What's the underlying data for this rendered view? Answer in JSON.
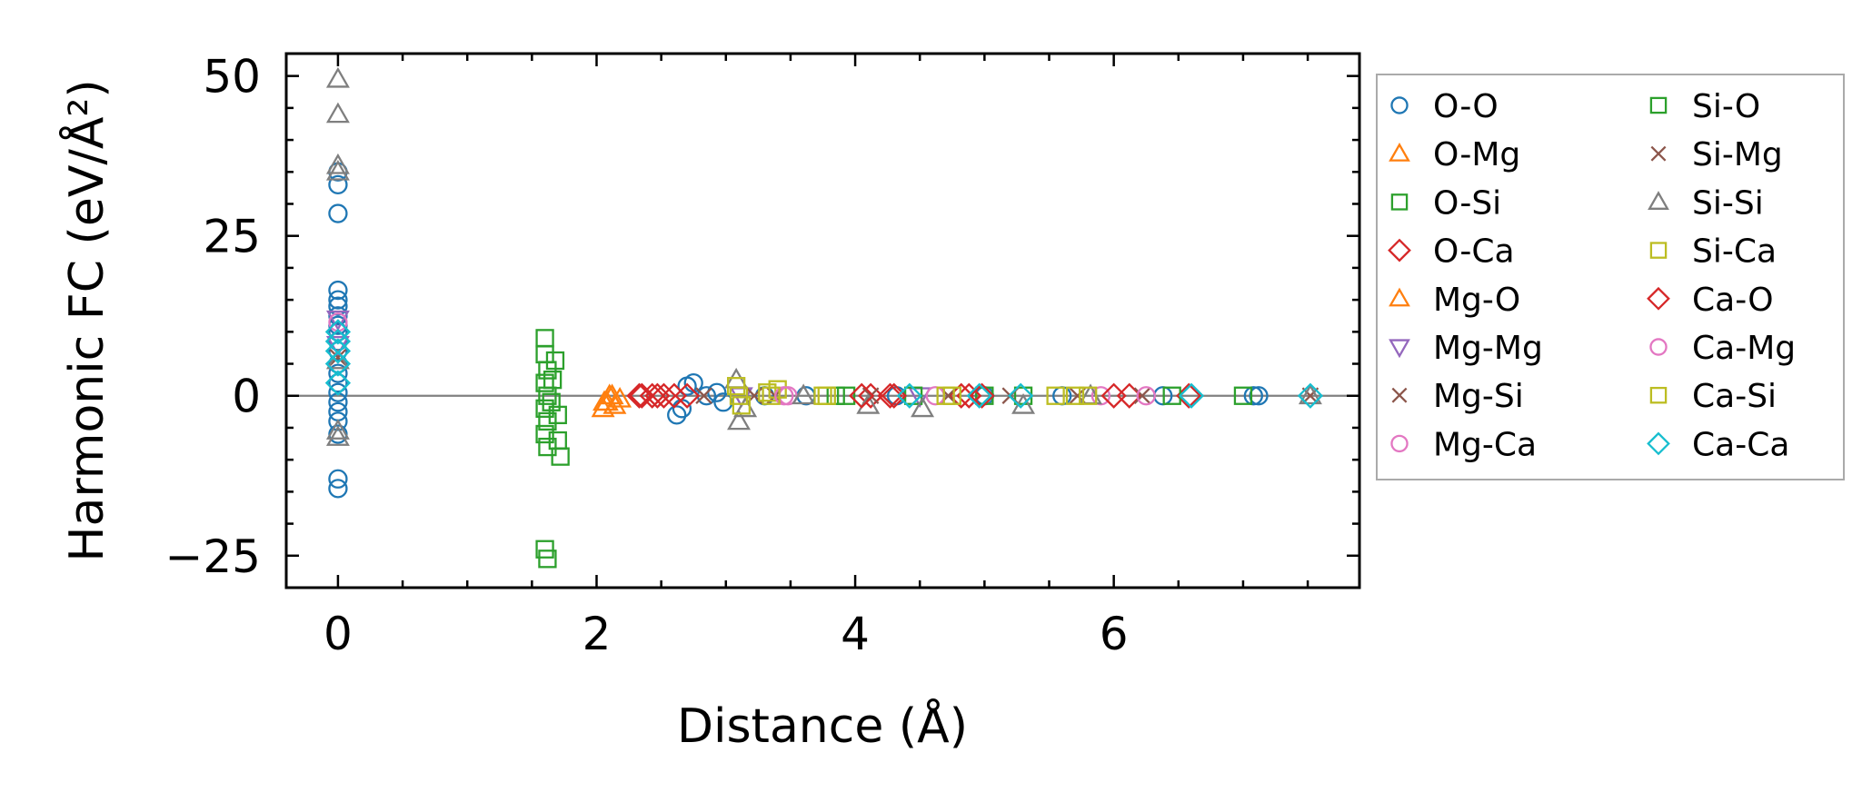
{
  "chart_data": {
    "type": "scatter",
    "title": "",
    "xlabel": "Distance (Å)",
    "ylabel": "Harmonic FC (eV/Å²)",
    "xlim": [
      -0.4,
      7.9
    ],
    "ylim": [
      -30,
      53.5
    ],
    "xticks": [
      0,
      2,
      4,
      6
    ],
    "yticks": [
      -25,
      0,
      25,
      50
    ],
    "xtick_labels": [
      "0",
      "2",
      "4",
      "6"
    ],
    "ytick_labels": [
      "−25",
      "0",
      "25",
      "50"
    ],
    "zero_line": true,
    "grid": false,
    "legend_position": "outside-right",
    "series": [
      {
        "name": "O-O",
        "marker": "circle",
        "color": "#1f77b4",
        "points": [
          [
            0,
            16.5
          ],
          [
            0,
            15
          ],
          [
            0,
            14
          ],
          [
            0,
            12.5
          ],
          [
            0,
            11
          ],
          [
            0,
            10
          ],
          [
            0,
            8.5
          ],
          [
            0,
            7
          ],
          [
            0,
            5
          ],
          [
            0,
            3.5
          ],
          [
            0,
            2
          ],
          [
            0,
            0.5
          ],
          [
            0,
            -1
          ],
          [
            0,
            -2.5
          ],
          [
            0,
            -4
          ],
          [
            0,
            -6
          ],
          [
            0,
            -13
          ],
          [
            0,
            -14.5
          ],
          [
            0,
            28.5
          ],
          [
            0,
            33
          ],
          [
            0,
            35
          ],
          [
            2.62,
            -3
          ],
          [
            2.66,
            -2
          ],
          [
            2.7,
            1.5
          ],
          [
            2.75,
            2
          ],
          [
            2.85,
            0
          ],
          [
            2.93,
            0.5
          ],
          [
            2.98,
            -1
          ],
          [
            3.3,
            0
          ],
          [
            3.62,
            0
          ],
          [
            4.32,
            0
          ],
          [
            5.0,
            0
          ],
          [
            5.6,
            0
          ],
          [
            6.38,
            0
          ],
          [
            7.08,
            0
          ],
          [
            7.12,
            0
          ]
        ]
      },
      {
        "name": "O-Mg",
        "marker": "triangle-up",
        "color": "#ff7f0e",
        "points": [
          [
            2.05,
            -2
          ],
          [
            2.08,
            -1
          ],
          [
            2.1,
            0
          ],
          [
            2.14,
            -1.5
          ],
          [
            2.18,
            -0.5
          ]
        ]
      },
      {
        "name": "O-Si",
        "marker": "square",
        "color": "#2ca02c",
        "points": [
          [
            1.6,
            9
          ],
          [
            1.6,
            6.5
          ],
          [
            1.62,
            4
          ],
          [
            1.6,
            2
          ],
          [
            1.62,
            0
          ],
          [
            1.6,
            -2
          ],
          [
            1.62,
            -4
          ],
          [
            1.6,
            -6
          ],
          [
            1.62,
            -8
          ],
          [
            1.65,
            -1
          ],
          [
            1.66,
            2.5
          ],
          [
            1.68,
            5.5
          ],
          [
            1.7,
            -3
          ],
          [
            1.7,
            -7
          ],
          [
            1.72,
            -9.5
          ],
          [
            1.6,
            -24
          ],
          [
            1.62,
            -25.5
          ],
          [
            3.93,
            0
          ],
          [
            5.0,
            0
          ],
          [
            7.0,
            0
          ]
        ]
      },
      {
        "name": "O-Ca",
        "marker": "diamond",
        "color": "#d62728",
        "points": [
          [
            2.33,
            0
          ],
          [
            2.43,
            0
          ],
          [
            2.52,
            0
          ],
          [
            2.6,
            0
          ],
          [
            2.7,
            0
          ],
          [
            4.12,
            0
          ],
          [
            4.27,
            0
          ],
          [
            4.82,
            0
          ],
          [
            4.98,
            0
          ],
          [
            6.12,
            0
          ],
          [
            6.58,
            0
          ]
        ]
      },
      {
        "name": "Mg-O",
        "marker": "triangle-up",
        "color": "#ff7f0e",
        "points": [
          [
            2.06,
            -1
          ],
          [
            2.12,
            0
          ]
        ]
      },
      {
        "name": "Mg-Mg",
        "marker": "triangle-down",
        "color": "#9467bd",
        "points": [
          [
            0,
            12
          ],
          [
            0,
            8
          ],
          [
            3.12,
            0
          ],
          [
            4.5,
            0
          ]
        ]
      },
      {
        "name": "Mg-Si",
        "marker": "x",
        "color": "#8c564b",
        "points": [
          [
            0,
            6
          ],
          [
            2.83,
            0
          ],
          [
            3.38,
            0
          ],
          [
            4.72,
            0
          ]
        ]
      },
      {
        "name": "Mg-Ca",
        "marker": "circle",
        "color": "#e377c2",
        "points": [
          [
            0,
            11.5
          ],
          [
            3.48,
            0
          ],
          [
            4.62,
            0
          ],
          [
            5.9,
            0
          ]
        ]
      },
      {
        "name": "Si-O",
        "marker": "square",
        "color": "#2ca02c",
        "points": [
          [
            3.85,
            0
          ],
          [
            4.45,
            0
          ],
          [
            5.3,
            0
          ],
          [
            6.45,
            0
          ]
        ]
      },
      {
        "name": "Si-Mg",
        "marker": "x",
        "color": "#8c564b",
        "points": [
          [
            3.22,
            0
          ],
          [
            4.12,
            0
          ],
          [
            5.2,
            0
          ],
          [
            5.72,
            0
          ],
          [
            6.22,
            0
          ],
          [
            7.52,
            0
          ]
        ]
      },
      {
        "name": "Si-Si",
        "marker": "triangle-up",
        "color": "#7f7f7f",
        "points": [
          [
            0,
            49.5
          ],
          [
            0,
            44
          ],
          [
            0,
            36
          ],
          [
            0,
            35
          ],
          [
            0,
            5.5
          ],
          [
            0,
            -5.5
          ],
          [
            0,
            -6.5
          ],
          [
            3.08,
            2.5
          ],
          [
            3.1,
            -4
          ],
          [
            3.15,
            -2
          ],
          [
            3.6,
            0
          ],
          [
            4.1,
            -1.5
          ],
          [
            4.52,
            -2
          ],
          [
            5.3,
            -1.5
          ],
          [
            5.82,
            0
          ],
          [
            7.52,
            0
          ]
        ]
      },
      {
        "name": "Si-Ca",
        "marker": "square",
        "color": "#bcbd22",
        "points": [
          [
            3.08,
            1.5
          ],
          [
            3.1,
            0
          ],
          [
            3.12,
            -1.5
          ],
          [
            3.32,
            0.5
          ],
          [
            3.4,
            1
          ],
          [
            3.78,
            0
          ],
          [
            4.7,
            0
          ],
          [
            5.7,
            0
          ]
        ]
      },
      {
        "name": "Ca-O",
        "marker": "diamond",
        "color": "#d62728",
        "points": [
          [
            2.35,
            0
          ],
          [
            2.47,
            0
          ],
          [
            4.05,
            0
          ],
          [
            4.3,
            0
          ],
          [
            4.88,
            0
          ],
          [
            6.0,
            0
          ]
        ]
      },
      {
        "name": "Ca-Mg",
        "marker": "circle",
        "color": "#e377c2",
        "points": [
          [
            3.45,
            0
          ],
          [
            6.25,
            0
          ]
        ]
      },
      {
        "name": "Ca-Si",
        "marker": "square",
        "color": "#bcbd22",
        "points": [
          [
            3.35,
            0
          ],
          [
            3.75,
            0
          ],
          [
            4.75,
            0
          ],
          [
            5.55,
            0
          ],
          [
            5.8,
            0
          ]
        ]
      },
      {
        "name": "Ca-Ca",
        "marker": "diamond",
        "color": "#17becf",
        "points": [
          [
            0,
            10
          ],
          [
            0,
            8.5
          ],
          [
            0,
            7
          ],
          [
            0,
            5
          ],
          [
            0,
            2
          ],
          [
            4.42,
            0
          ],
          [
            4.96,
            0
          ],
          [
            5.28,
            0
          ],
          [
            6.6,
            0
          ],
          [
            7.52,
            0
          ]
        ]
      }
    ]
  }
}
